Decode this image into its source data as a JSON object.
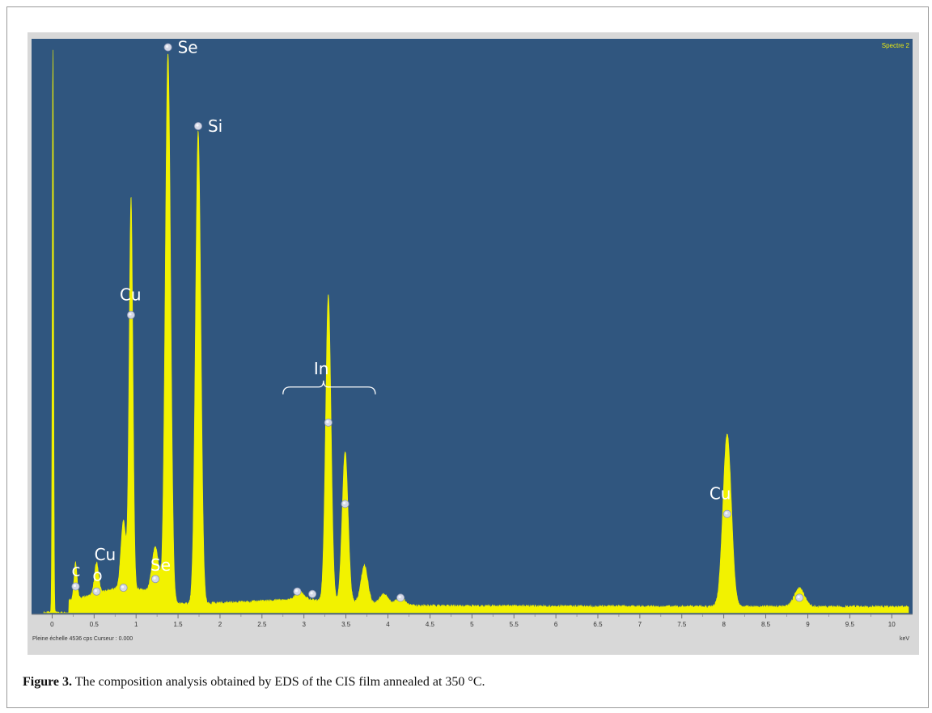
{
  "window": {
    "spectrum_label": "Spectre 2"
  },
  "footer": {
    "scale_text": "Pleine échelle 4536 cps  Curseur : 0.000",
    "unit_label": "keV"
  },
  "caption": {
    "label": "Figure 3.",
    "text": " The composition analysis obtained by EDS of the CIS film annealed at 350 °C."
  },
  "colors": {
    "plot_background": "#30567f",
    "spectrum_fill": "#f2f200",
    "window_background": "#d8d8d8"
  },
  "chart_data": {
    "type": "area",
    "title": "",
    "xlabel": "keV",
    "ylabel": "",
    "xlim": [
      -0.1,
      10.2
    ],
    "ylim": [
      0,
      4536
    ],
    "grid": false,
    "x_ticks": [
      0,
      0.5,
      1,
      1.5,
      2,
      2.5,
      3,
      3.5,
      4,
      4.5,
      5,
      5.5,
      6,
      6.5,
      7,
      7.5,
      8,
      8.5,
      9,
      9.5,
      10
    ],
    "x_tick_labels": [
      "0",
      "0.5",
      "1",
      "1.5",
      "2",
      "2.5",
      "3",
      "3.5",
      "4",
      "4.5",
      "5",
      "5.5",
      "6",
      "6.5",
      "7",
      "7.5",
      "8",
      "8.5",
      "9",
      "9.5",
      "10"
    ],
    "peaks": [
      {
        "x": 0.01,
        "y": 4536,
        "width": 0.008
      },
      {
        "x": 0.28,
        "y": 290,
        "width": 0.018
      },
      {
        "x": 0.53,
        "y": 250,
        "width": 0.025
      },
      {
        "x": 0.85,
        "y": 540,
        "width": 0.03
      },
      {
        "x": 0.94,
        "y": 3120,
        "width": 0.022
      },
      {
        "x": 1.23,
        "y": 370,
        "width": 0.04
      },
      {
        "x": 1.38,
        "y": 4400,
        "width": 0.032
      },
      {
        "x": 1.74,
        "y": 3780,
        "width": 0.032
      },
      {
        "x": 2.95,
        "y": 70,
        "width": 0.05
      },
      {
        "x": 3.29,
        "y": 2450,
        "width": 0.032
      },
      {
        "x": 3.49,
        "y": 1200,
        "width": 0.035
      },
      {
        "x": 3.72,
        "y": 300,
        "width": 0.04
      },
      {
        "x": 3.95,
        "y": 80,
        "width": 0.05
      },
      {
        "x": 4.15,
        "y": 60,
        "width": 0.05
      },
      {
        "x": 8.04,
        "y": 1380,
        "width": 0.05
      },
      {
        "x": 8.9,
        "y": 150,
        "width": 0.06
      }
    ],
    "annotations": [
      {
        "text": "Se",
        "marker_x": 1.38,
        "marker_y": 4520
      },
      {
        "text": "Si",
        "marker_x": 1.74,
        "marker_y": 3890
      },
      {
        "text": "Cu",
        "marker_x": 0.94,
        "marker_y": 2380
      },
      {
        "text": "In",
        "marker_x": 3.29,
        "marker_y": 1520,
        "bracket": [
          2.75,
          3.85
        ]
      },
      {
        "text": "Cu",
        "marker_x": 8.04,
        "marker_y": 790
      },
      {
        "text": "Cu",
        "marker_x": 0.85,
        "marker_y": 200
      },
      {
        "text": "Se",
        "marker_x": 1.23,
        "marker_y": 270
      },
      {
        "text": "c",
        "marker_x": 0.28,
        "marker_y": 210
      },
      {
        "text": "o",
        "marker_x": 0.53,
        "marker_y": 170
      }
    ],
    "unlabeled_markers": [
      {
        "x": 2.92,
        "y": 170
      },
      {
        "x": 3.1,
        "y": 150
      },
      {
        "x": 3.49,
        "y": 870
      },
      {
        "x": 4.15,
        "y": 120
      },
      {
        "x": 8.9,
        "y": 120
      }
    ]
  }
}
